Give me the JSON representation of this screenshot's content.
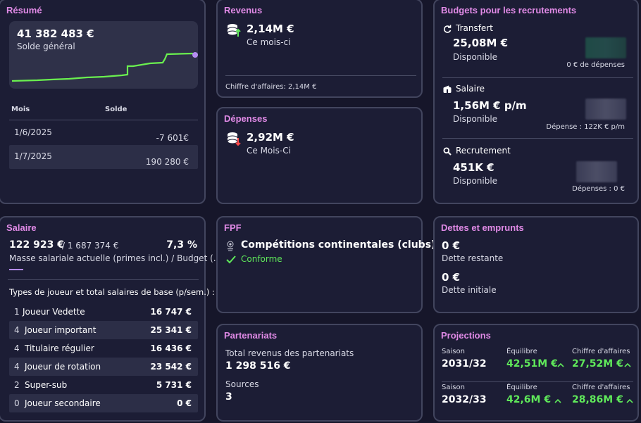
{
  "resume": {
    "title": "Résumé",
    "balance": "41 382 483 €",
    "balance_label": "Solde général",
    "col_month": "Mois",
    "col_balance": "Solde",
    "rows": [
      {
        "month": "1/6/2025",
        "value": "-7 601€"
      },
      {
        "month": "1/7/2025",
        "value": "190 280 €"
      }
    ],
    "line_color": "#6af04f",
    "dot_color": "#b48cf0"
  },
  "revenus": {
    "title": "Revenus",
    "amount": "2,14M €",
    "period": "Ce mois-ci",
    "footer_label": "Chiffre d'affaires:",
    "footer_value": "2,14M €",
    "icon": "coins-up-icon"
  },
  "depenses": {
    "title": "Dépenses",
    "amount": "2,92M €",
    "period": "Ce Mois-Ci",
    "icon": "coins-down-icon"
  },
  "budgets": {
    "title": "Budgets pour les recrutements",
    "sections": [
      {
        "label": "Transfert",
        "icon": "refresh-icon",
        "amount": "25,08M €",
        "status": "Disponible",
        "note": "0 € de dépenses"
      },
      {
        "label": "Salaire",
        "icon": "wallet-icon",
        "amount": "1,56M € p/m",
        "status": "Disponible",
        "note": "Dépense : 122K € p/m"
      },
      {
        "label": "Recrutement",
        "icon": "magnifier-icon",
        "amount": "451K €",
        "status": "Disponible",
        "note": "Dépenses : 0 €"
      }
    ]
  },
  "salaire": {
    "title": "Salaire",
    "current": "122 923 €",
    "budget": "/ 1 687 374 €",
    "percent": "7,3 %",
    "description": "Masse salariale actuelle (primes incl.) / Budget (...",
    "types_title": "Types de joueur et total salaires de base (p/sem.) :",
    "rows": [
      {
        "count": "1",
        "type": "Joueur Vedette",
        "value": "16 747 €"
      },
      {
        "count": "4",
        "type": "Joueur important",
        "value": "25 341 €"
      },
      {
        "count": "4",
        "type": "Titulaire régulier",
        "value": "16 436 €"
      },
      {
        "count": "4",
        "type": "Joueur de rotation",
        "value": "23 542 €"
      },
      {
        "count": "2",
        "type": "Super-sub",
        "value": "5 731 €"
      },
      {
        "count": "0",
        "type": "Joueur secondaire",
        "value": "0 €"
      }
    ]
  },
  "fpf": {
    "title": "FPF",
    "competition": "Compétitions continentales (clubs)",
    "status": "Conforme",
    "icon": "trophy-logo-icon"
  },
  "dettes": {
    "title": "Dettes et emprunts",
    "remaining_value": "0 €",
    "remaining_label": "Dette restante",
    "initial_value": "0 €",
    "initial_label": "Dette initiale"
  },
  "partenariats": {
    "title": "Partenariats",
    "total_label": "Total revenus des partenariats",
    "total_value": "1 298 516 €",
    "sources_label": "Sources",
    "sources_value": "3"
  },
  "projections": {
    "title": "Projections",
    "col_season": "Saison",
    "col_balance": "Équilibre",
    "col_revenue": "Chiffre d'affaires",
    "rows": [
      {
        "season": "2031/32",
        "balance": "42,51M €",
        "revenue": "27,52M €"
      },
      {
        "season": "2032/33",
        "balance": "42,6M €",
        "revenue": "28,86M €"
      }
    ]
  }
}
